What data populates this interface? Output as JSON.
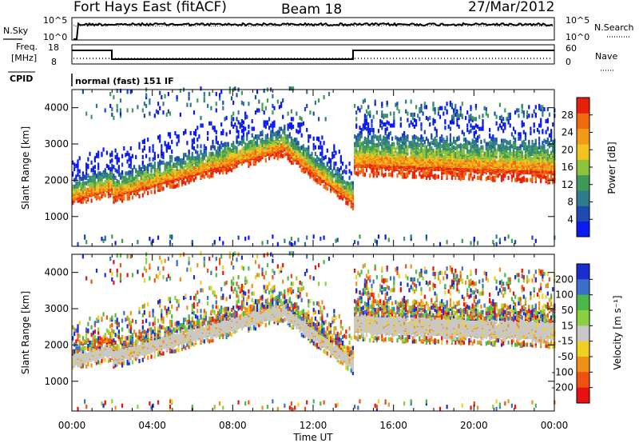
{
  "header": {
    "station": "Fort Hays East (fitACF)",
    "beam": "Beam 18",
    "date": "27/Mar/2012"
  },
  "status_panels": {
    "nsky_label": "N.Sky",
    "nsky_ticks": [
      "10^5",
      "10^0"
    ],
    "nsearch_label": "N.Search",
    "nsearch_ticks": [
      "10^5",
      "10^0"
    ],
    "freq_label_1": "Freq.",
    "freq_label_2": "[MHz]",
    "freq_ticks": [
      "18",
      "8"
    ],
    "nave_label": "Nave",
    "nave_ticks": [
      "60",
      "0"
    ],
    "cpid_label": "CPID",
    "cpid_value": "normal (fast) 151 IF"
  },
  "chart_data": [
    {
      "type": "heatmap",
      "name": "power",
      "ylabel": "Slant Range [km]",
      "y_ticks": [
        "1000",
        "2000",
        "3000",
        "4000"
      ],
      "y_tick_values": [
        1000,
        2000,
        3000,
        4000
      ],
      "ylim": [
        180,
        4500
      ],
      "xlim_hours": [
        0,
        24
      ],
      "colorbar": {
        "label": "Power [dB]",
        "ticks": [
          "4",
          "8",
          "12",
          "16",
          "20",
          "24",
          "28"
        ],
        "tick_values": [
          4,
          8,
          12,
          16,
          20,
          24,
          28
        ],
        "range": [
          0,
          32
        ],
        "colors": [
          "#0a1af0",
          "#1d4bb0",
          "#2f7a8c",
          "#3f9a58",
          "#8dc23c",
          "#f2c420",
          "#f29a18",
          "#f06a10",
          "#e8200a"
        ]
      },
      "echo_bands": [
        {
          "t0": 0.0,
          "t1": 2.0,
          "center": [
            1500,
            1800
          ],
          "width": 450
        },
        {
          "t0": 2.0,
          "t1": 10.6,
          "center": [
            1600,
            2900
          ],
          "width": 500
        },
        {
          "t0": 10.6,
          "t1": 14.0,
          "center": [
            2800,
            1400
          ],
          "width": 450
        },
        {
          "t0": 14.0,
          "t1": 24.0,
          "center": [
            2500,
            2300
          ],
          "width": 700
        }
      ]
    },
    {
      "type": "heatmap",
      "name": "velocity",
      "ylabel": "Slant Range [km]",
      "y_ticks": [
        "1000",
        "2000",
        "3000",
        "4000"
      ],
      "y_tick_values": [
        1000,
        2000,
        3000,
        4000
      ],
      "ylim": [
        180,
        4500
      ],
      "xlim_hours": [
        0,
        24
      ],
      "colorbar": {
        "label": "Velocity [m s⁻¹]",
        "ticks": [
          "200",
          "100",
          "50",
          "15",
          "-15",
          "-50",
          "-100",
          "-200"
        ],
        "colors": [
          "#1a2ed0",
          "#3a70c8",
          "#4ab84a",
          "#8ad040",
          "#c8c8c8",
          "#f0d020",
          "#f09018",
          "#f05010",
          "#e81010"
        ]
      },
      "xlabel": "Time UT",
      "x_ticks": [
        "00:00",
        "04:00",
        "08:00",
        "12:00",
        "16:00",
        "20:00",
        "00:00"
      ],
      "x_tick_hours": [
        0,
        4,
        8,
        12,
        16,
        20,
        24
      ]
    }
  ]
}
